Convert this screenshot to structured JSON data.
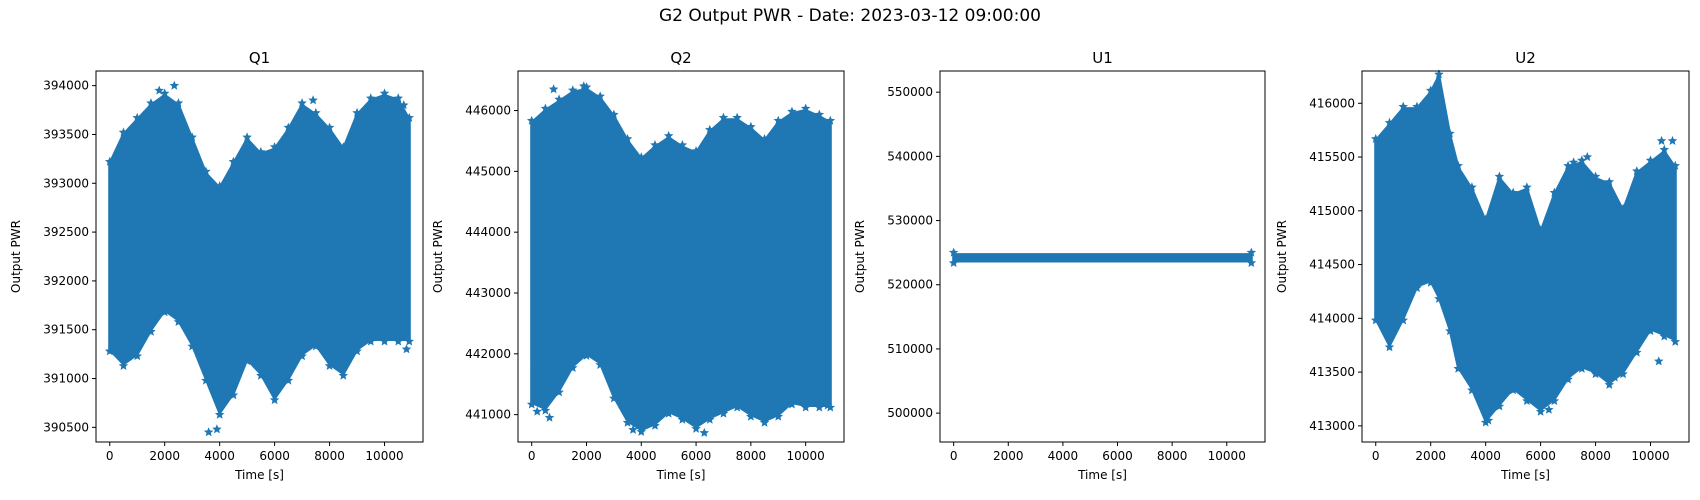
{
  "figure": {
    "title": "G2 Output PWR - Date: 2023-03-12 09:00:00"
  },
  "chart_data": [
    {
      "type": "scatter",
      "title": "Q1",
      "xlabel": "Time [s]",
      "ylabel": "Output PWR",
      "marker": "*",
      "color": "#1f77b4",
      "xlim": [
        -500,
        11400
      ],
      "ylim": [
        390350,
        394150
      ],
      "xticks": [
        0,
        2000,
        4000,
        6000,
        8000,
        10000
      ],
      "yticks": [
        390500,
        391000,
        391500,
        392000,
        392500,
        393000,
        393500,
        394000
      ],
      "x": [
        0,
        500,
        1000,
        1500,
        2000,
        2500,
        3000,
        3500,
        4000,
        4500,
        5000,
        5500,
        6000,
        6500,
        7000,
        7500,
        8000,
        8500,
        9000,
        9500,
        10000,
        10500,
        10900
      ],
      "upper": [
        393200,
        393500,
        393650,
        393800,
        393900,
        393800,
        393450,
        393100,
        392950,
        393200,
        393450,
        393300,
        393350,
        393550,
        393800,
        393700,
        393550,
        393350,
        393700,
        393850,
        393900,
        393850,
        393650
      ],
      "lower": [
        391300,
        391150,
        391250,
        391500,
        391700,
        391600,
        391350,
        391000,
        390650,
        390850,
        391200,
        391050,
        390800,
        391000,
        391250,
        391350,
        391150,
        391050,
        391300,
        391400,
        391400,
        391400,
        391400
      ],
      "outliers": [
        [
          1800,
          393950
        ],
        [
          2350,
          394000
        ],
        [
          3600,
          390450
        ],
        [
          3900,
          390480
        ],
        [
          7400,
          393850
        ],
        [
          10700,
          393800
        ],
        [
          10800,
          391300
        ]
      ]
    },
    {
      "type": "scatter",
      "title": "Q2",
      "xlabel": "Time [s]",
      "ylabel": "Output PWR",
      "marker": "*",
      "color": "#1f77b4",
      "xlim": [
        -500,
        11400
      ],
      "ylim": [
        440550,
        446650
      ],
      "xticks": [
        0,
        2000,
        4000,
        6000,
        8000,
        10000
      ],
      "yticks": [
        441000,
        442000,
        443000,
        444000,
        445000,
        446000
      ],
      "x": [
        0,
        500,
        1000,
        1500,
        2000,
        2500,
        3000,
        3500,
        4000,
        4500,
        5000,
        5500,
        6000,
        6500,
        7000,
        7500,
        8000,
        8500,
        9000,
        9500,
        10000,
        10500,
        10900
      ],
      "upper": [
        445800,
        446000,
        446150,
        446300,
        446350,
        446200,
        445900,
        445500,
        445200,
        445400,
        445550,
        445400,
        445300,
        445650,
        445850,
        445850,
        445700,
        445500,
        445800,
        445950,
        446000,
        445900,
        445800
      ],
      "lower": [
        441200,
        441100,
        441400,
        441800,
        442000,
        441850,
        441300,
        440900,
        440750,
        440850,
        441050,
        440950,
        440800,
        440950,
        441050,
        441150,
        441000,
        440900,
        441000,
        441200,
        441150,
        441150,
        441150
      ],
      "outliers": [
        [
          200,
          441050
        ],
        [
          650,
          440950
        ],
        [
          1900,
          446400
        ],
        [
          800,
          446350
        ],
        [
          3700,
          440750
        ],
        [
          6300,
          440700
        ],
        [
          10800,
          441150
        ]
      ]
    },
    {
      "type": "scatter",
      "title": "U1",
      "xlabel": "Time [s]",
      "ylabel": "Output PWR",
      "marker": "*",
      "color": "#1f77b4",
      "xlim": [
        -500,
        11400
      ],
      "ylim": [
        495500,
        553300
      ],
      "xticks": [
        0,
        2000,
        4000,
        6000,
        8000,
        10000
      ],
      "yticks": [
        500000,
        510000,
        520000,
        530000,
        540000,
        550000
      ],
      "x": [
        0,
        10900
      ],
      "upper": [
        524700,
        524700
      ],
      "lower": [
        523700,
        523700
      ],
      "outliers": []
    },
    {
      "type": "scatter",
      "title": "U2",
      "xlabel": "Time [s]",
      "ylabel": "Output PWR",
      "marker": "*",
      "color": "#1f77b4",
      "xlim": [
        -500,
        11400
      ],
      "ylim": [
        412850,
        416300
      ],
      "xticks": [
        0,
        2000,
        4000,
        6000,
        8000,
        10000
      ],
      "yticks": [
        413000,
        413500,
        414000,
        414500,
        415000,
        415500,
        416000
      ],
      "x": [
        0,
        500,
        1000,
        1500,
        2000,
        2300,
        2700,
        3000,
        3500,
        4000,
        4500,
        5000,
        5500,
        6000,
        6500,
        7000,
        7500,
        8000,
        8500,
        9000,
        9500,
        10000,
        10500,
        10900
      ],
      "upper": [
        415650,
        415800,
        415950,
        415950,
        416100,
        416250,
        415700,
        415400,
        415200,
        414900,
        415300,
        415150,
        415200,
        414800,
        415150,
        415400,
        415450,
        415300,
        415250,
        415000,
        415350,
        415450,
        415550,
        415400
      ],
      "lower": [
        414000,
        413750,
        414000,
        414300,
        414350,
        414200,
        413900,
        413550,
        413350,
        413050,
        413200,
        413350,
        413250,
        413150,
        413250,
        413450,
        413550,
        413500,
        413400,
        413500,
        413700,
        413900,
        413850,
        413800
      ],
      "outliers": [
        [
          4100,
          413050
        ],
        [
          6300,
          413150
        ],
        [
          7200,
          415450
        ],
        [
          7700,
          415500
        ],
        [
          10400,
          415650
        ],
        [
          10800,
          415650
        ],
        [
          10300,
          413600
        ],
        [
          8700,
          413450
        ]
      ]
    }
  ]
}
